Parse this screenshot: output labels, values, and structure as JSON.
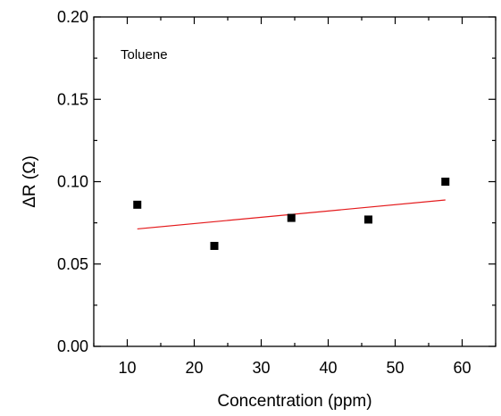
{
  "chart_data": {
    "type": "scatter",
    "title": "",
    "xlabel": "Concentration (ppm)",
    "ylabel": "ΔR (Ω)",
    "annotation": "Toluene",
    "xlim": [
      5,
      65
    ],
    "ylim": [
      0,
      0.2
    ],
    "x_ticks": [
      10,
      20,
      30,
      40,
      50,
      60
    ],
    "x_tick_labels": [
      "10",
      "20",
      "30",
      "40",
      "50",
      "60"
    ],
    "y_ticks": [
      0,
      0.05,
      0.1,
      0.15,
      0.2
    ],
    "y_tick_labels": [
      "0.00",
      "0.05",
      "0.10",
      "0.15",
      "0.20"
    ],
    "grid": false,
    "series": [
      {
        "marker": "square",
        "color": "#000000",
        "x": [
          11.5,
          23,
          34.5,
          46,
          57.5
        ],
        "y": [
          0.086,
          0.061,
          0.078,
          0.077,
          0.1
        ]
      }
    ],
    "fit_line": {
      "color": "#e41a1c",
      "x": [
        11.5,
        57.5
      ],
      "y": [
        0.0713,
        0.0889
      ]
    }
  }
}
